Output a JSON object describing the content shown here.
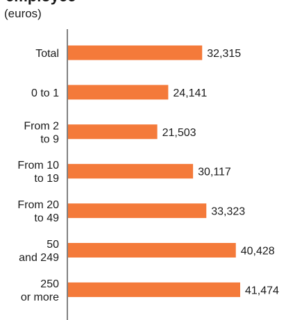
{
  "chart_data": {
    "type": "bar",
    "orientation": "horizontal",
    "title": "employee",
    "unit_label": "(euros)",
    "categories": [
      [
        "Total"
      ],
      [
        "0 to 1"
      ],
      [
        "From 2",
        "to 9"
      ],
      [
        "From 10",
        "to 19"
      ],
      [
        "From 20",
        "to 49"
      ],
      [
        "50",
        "and 249"
      ],
      [
        "250",
        "or more"
      ]
    ],
    "values": [
      32315,
      24141,
      21503,
      30117,
      33323,
      40428,
      41474
    ],
    "value_labels": [
      "32,315",
      "24,141",
      "21,503",
      "30,117",
      "33,323",
      "40,428",
      "41,474"
    ],
    "xlim": [
      0,
      45000
    ],
    "bar_color": "#f47a3a",
    "axis_color": "#000000",
    "grid": false,
    "legend": "none"
  }
}
